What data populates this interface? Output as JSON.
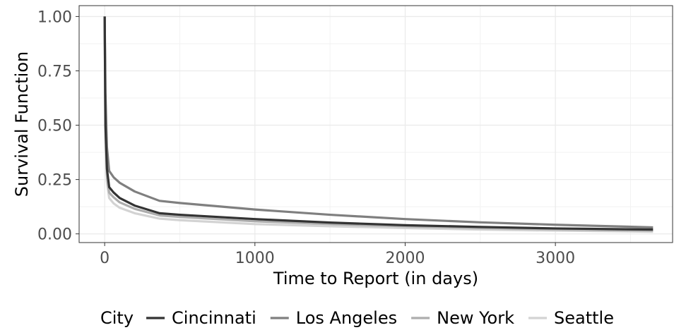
{
  "chart_data": {
    "type": "line",
    "title": "",
    "xlabel": "Time to Report (in days)",
    "ylabel": "Survival Function",
    "xlim": [
      -170,
      3780
    ],
    "ylim": [
      -0.04,
      1.05
    ],
    "x_ticks": [
      0,
      1000,
      2000,
      3000
    ],
    "x_tick_labels": [
      "0",
      "1000",
      "2000",
      "3000"
    ],
    "y_ticks": [
      0.0,
      0.25,
      0.5,
      0.75,
      1.0
    ],
    "y_tick_labels": [
      "0.00",
      "0.25",
      "0.50",
      "0.75",
      "1.00"
    ],
    "grid": true,
    "legend": {
      "title": "City",
      "position": "bottom"
    },
    "series": [
      {
        "name": "Cincinnati",
        "color": "#333333",
        "points": [
          [
            0,
            1.0
          ],
          [
            5,
            0.5
          ],
          [
            15,
            0.3
          ],
          [
            30,
            0.215
          ],
          [
            60,
            0.19
          ],
          [
            100,
            0.165
          ],
          [
            200,
            0.13
          ],
          [
            365,
            0.095
          ],
          [
            500,
            0.088
          ],
          [
            1000,
            0.068
          ],
          [
            1500,
            0.052
          ],
          [
            2000,
            0.04
          ],
          [
            2500,
            0.032
          ],
          [
            3000,
            0.025
          ],
          [
            3650,
            0.02
          ]
        ]
      },
      {
        "name": "Los Angeles",
        "color": "#7f7f7f",
        "points": [
          [
            0,
            1.0
          ],
          [
            5,
            0.65
          ],
          [
            15,
            0.4
          ],
          [
            30,
            0.29
          ],
          [
            60,
            0.26
          ],
          [
            100,
            0.235
          ],
          [
            200,
            0.195
          ],
          [
            365,
            0.152
          ],
          [
            500,
            0.142
          ],
          [
            1000,
            0.112
          ],
          [
            1500,
            0.088
          ],
          [
            2000,
            0.068
          ],
          [
            2500,
            0.053
          ],
          [
            3000,
            0.042
          ],
          [
            3650,
            0.03
          ]
        ]
      },
      {
        "name": "New York",
        "color": "#adadad",
        "points": [
          [
            0,
            1.0
          ],
          [
            5,
            0.5
          ],
          [
            15,
            0.27
          ],
          [
            30,
            0.19
          ],
          [
            60,
            0.168
          ],
          [
            100,
            0.145
          ],
          [
            200,
            0.115
          ],
          [
            365,
            0.085
          ],
          [
            500,
            0.078
          ],
          [
            1000,
            0.058
          ],
          [
            1500,
            0.045
          ],
          [
            2000,
            0.035
          ],
          [
            2500,
            0.027
          ],
          [
            3000,
            0.021
          ],
          [
            3650,
            0.015
          ]
        ]
      },
      {
        "name": "Seattle",
        "color": "#d3d3d3",
        "points": [
          [
            0,
            1.0
          ],
          [
            5,
            0.45
          ],
          [
            15,
            0.24
          ],
          [
            30,
            0.165
          ],
          [
            60,
            0.14
          ],
          [
            100,
            0.12
          ],
          [
            200,
            0.095
          ],
          [
            365,
            0.07
          ],
          [
            500,
            0.063
          ],
          [
            1000,
            0.045
          ],
          [
            1500,
            0.035
          ],
          [
            2000,
            0.027
          ],
          [
            2500,
            0.02
          ],
          [
            3000,
            0.015
          ],
          [
            3650,
            0.01
          ]
        ]
      }
    ]
  }
}
